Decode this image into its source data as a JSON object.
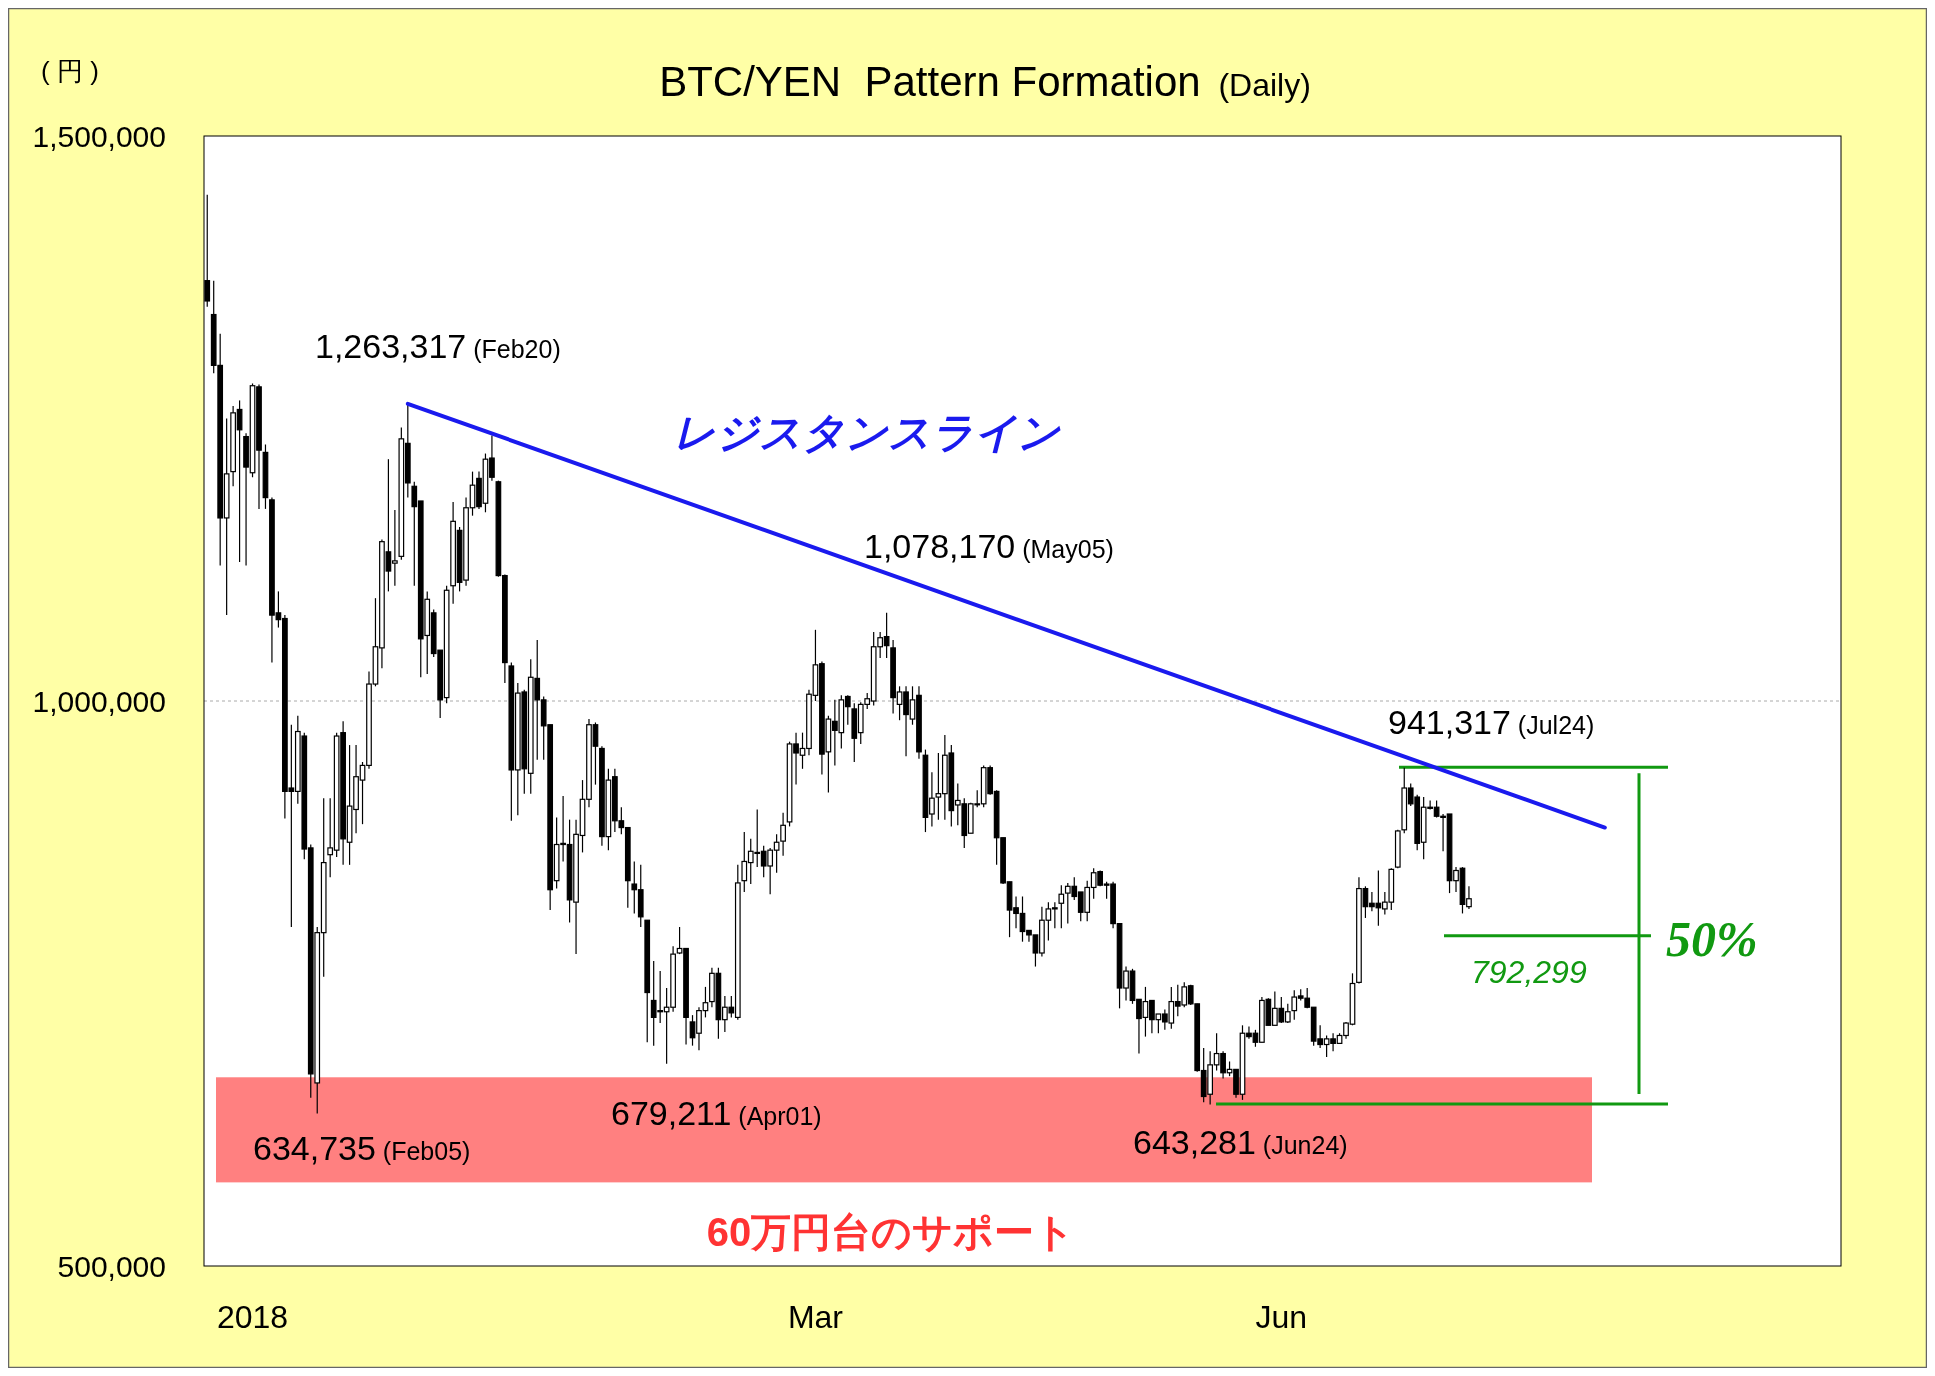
{
  "chart_data": {
    "type": "candlestick",
    "title": "BTC/YEN  Pattern Formation  (Daily)",
    "ylabel": "( 円 )",
    "categories": [
      null,
      null,
      null,
      null,
      null,
      null,
      null,
      "2018",
      null,
      null,
      null,
      null,
      null,
      null,
      null,
      null,
      null,
      null,
      null,
      null,
      null,
      null,
      null,
      null,
      null,
      null,
      null,
      null,
      null,
      null,
      null,
      null,
      null,
      null,
      null,
      null,
      null,
      null,
      null,
      null,
      null,
      null,
      null,
      null,
      null,
      null,
      null,
      null,
      null,
      null,
      null,
      null,
      null,
      null,
      null,
      null,
      null,
      null,
      null,
      null,
      null,
      null,
      null,
      null,
      null,
      null,
      null,
      null,
      null,
      null,
      null,
      null,
      null,
      null,
      null,
      null,
      null,
      null,
      null,
      null,
      null,
      null,
      null,
      null,
      null,
      null,
      null,
      null,
      null,
      null,
      null,
      null,
      null,
      null,
      "Mar",
      null,
      null,
      null,
      null,
      null,
      null,
      null,
      null,
      null,
      null,
      null,
      null,
      null,
      null,
      null,
      null,
      null,
      null,
      null,
      null,
      null,
      null,
      null,
      null,
      null,
      null,
      null,
      null,
      null,
      null,
      null,
      null,
      null,
      null,
      null,
      null,
      null,
      null,
      null,
      null,
      null,
      null,
      null,
      null,
      null,
      null,
      null,
      null,
      null,
      null,
      null,
      null,
      null,
      null,
      null,
      null,
      null,
      null,
      null,
      null,
      null,
      null,
      null,
      null,
      null,
      null,
      null,
      null,
      null,
      null,
      null,
      "Jun",
      null,
      null,
      null,
      null,
      null,
      null,
      null,
      null,
      null,
      null,
      null,
      null,
      null,
      null,
      null,
      null,
      null,
      null,
      null,
      null,
      null,
      null,
      null,
      null,
      null,
      null,
      null,
      null,
      null,
      null,
      null,
      null,
      null,
      null,
      null,
      null,
      null,
      null,
      null,
      null,
      null,
      null,
      null,
      null,
      null,
      null,
      null,
      null,
      null,
      null,
      null,
      null,
      null,
      null,
      null,
      null,
      null,
      null,
      null,
      null,
      null,
      null,
      null,
      null,
      null,
      null,
      null,
      null,
      null,
      null,
      null,
      null,
      null,
      null,
      null,
      null,
      null,
      null,
      null,
      null,
      null,
      null,
      null,
      null,
      null,
      null
    ],
    "ohlc": [
      [
        1372000,
        1448000,
        1349000,
        1354000
      ],
      [
        1342000,
        1372000,
        1290000,
        1297000
      ],
      [
        1297000,
        1325000,
        1120000,
        1162000
      ],
      [
        1162000,
        1250000,
        1076000,
        1201000
      ],
      [
        1203000,
        1261000,
        1190000,
        1255000
      ],
      [
        1258000,
        1266000,
        1123000,
        1240000
      ],
      [
        1234000,
        1237000,
        1120000,
        1207000
      ],
      [
        1202000,
        1281000,
        1198000,
        1279000
      ],
      [
        1278000,
        1280000,
        1170000,
        1222000
      ],
      [
        1220000,
        1227000,
        1170000,
        1180000
      ],
      [
        1178000,
        1180000,
        1034000,
        1076000
      ],
      [
        1078000,
        1097000,
        1065000,
        1072000
      ],
      [
        1073000,
        1076000,
        896000,
        920000
      ],
      [
        923000,
        979000,
        800000,
        920000
      ],
      [
        920000,
        987000,
        909000,
        973000
      ],
      [
        969000,
        972000,
        860000,
        869000
      ],
      [
        870000,
        873000,
        649000,
        670000
      ],
      [
        662000,
        800000,
        635000,
        795000
      ],
      [
        795000,
        914000,
        756000,
        857000
      ],
      [
        864000,
        914000,
        844000,
        870000
      ],
      [
        868000,
        972000,
        862000,
        969000
      ],
      [
        972000,
        982000,
        855000,
        878000
      ],
      [
        875000,
        961000,
        855000,
        907000
      ],
      [
        904000,
        961000,
        883000,
        933000
      ],
      [
        930000,
        946000,
        891000,
        943000
      ],
      [
        943000,
        1026000,
        940000,
        1015000
      ],
      [
        1015000,
        1091000,
        1013000,
        1048000
      ],
      [
        1047000,
        1143000,
        1029000,
        1141000
      ],
      [
        1132000,
        1214000,
        1097000,
        1115000
      ],
      [
        1122000,
        1169000,
        1102000,
        1124000
      ],
      [
        1128000,
        1242000,
        1125000,
        1232000
      ],
      [
        1228000,
        1263000,
        1180000,
        1193000
      ],
      [
        1190000,
        1194000,
        1102000,
        1172000
      ],
      [
        1177000,
        1177000,
        1021000,
        1055000
      ],
      [
        1058000,
        1097000,
        1024000,
        1090000
      ],
      [
        1078000,
        1081000,
        1039000,
        1042000
      ],
      [
        1045000,
        1045000,
        985000,
        1001000
      ],
      [
        1003000,
        1102000,
        998000,
        1098000
      ],
      [
        1102000,
        1176000,
        1086000,
        1159000
      ],
      [
        1151000,
        1154000,
        1097000,
        1105000
      ],
      [
        1107000,
        1180000,
        1102000,
        1171000
      ],
      [
        1171000,
        1203000,
        1164000,
        1191000
      ],
      [
        1197000,
        1203000,
        1170000,
        1172000
      ],
      [
        1175000,
        1219000,
        1167000,
        1214000
      ],
      [
        1215000,
        1235000,
        1195000,
        1198000
      ],
      [
        1194000,
        1195000,
        1110000,
        1111000
      ],
      [
        1111000,
        1112000,
        1016000,
        1034000
      ],
      [
        1031000,
        1034000,
        894000,
        939000
      ],
      [
        939000,
        1016000,
        899000,
        1007000
      ],
      [
        1008000,
        1010000,
        918000,
        940000
      ],
      [
        936000,
        1037000,
        918000,
        1021000
      ],
      [
        1020000,
        1054000,
        948000,
        1001000
      ],
      [
        1001000,
        1004000,
        948000,
        978000
      ],
      [
        979000,
        979000,
        815000,
        833000
      ],
      [
        841000,
        897000,
        834000,
        873000
      ],
      [
        873000,
        916000,
        858000,
        874000
      ],
      [
        873000,
        895000,
        804000,
        824000
      ],
      [
        822000,
        895000,
        776000,
        882000
      ],
      [
        881000,
        930000,
        866000,
        913000
      ],
      [
        913000,
        984000,
        906000,
        979000
      ],
      [
        979000,
        981000,
        926000,
        960000
      ],
      [
        958000,
        960000,
        872000,
        880000
      ],
      [
        880000,
        940000,
        868000,
        930000
      ],
      [
        933000,
        940000,
        884000,
        894000
      ],
      [
        894000,
        906000,
        882000,
        888000
      ],
      [
        888000,
        888000,
        817000,
        841000
      ],
      [
        838000,
        858000,
        812000,
        833000
      ],
      [
        833000,
        855000,
        800000,
        809000
      ],
      [
        806000,
        806000,
        698000,
        742000
      ],
      [
        735000,
        770000,
        695000,
        720000
      ],
      [
        726000,
        761000,
        715000,
        725000
      ],
      [
        725000,
        746000,
        679000,
        729000
      ],
      [
        729000,
        783000,
        725000,
        776000
      ],
      [
        777000,
        800000,
        776000,
        781000
      ],
      [
        781000,
        781000,
        696000,
        720000
      ],
      [
        716000,
        722000,
        695000,
        702000
      ],
      [
        706000,
        729000,
        691000,
        726000
      ],
      [
        726000,
        747000,
        720000,
        733000
      ],
      [
        734000,
        764000,
        729000,
        759000
      ],
      [
        759000,
        764000,
        701000,
        718000
      ],
      [
        718000,
        739000,
        707000,
        729000
      ],
      [
        729000,
        739000,
        720000,
        724000
      ],
      [
        720000,
        855000,
        718000,
        839000
      ],
      [
        841000,
        884000,
        831000,
        858000
      ],
      [
        857000,
        878000,
        838000,
        867000
      ],
      [
        866000,
        904000,
        853000,
        866000
      ],
      [
        867000,
        872000,
        844000,
        854000
      ],
      [
        854000,
        870000,
        829000,
        868000
      ],
      [
        868000,
        882000,
        848000,
        875000
      ],
      [
        876000,
        901000,
        863000,
        890000
      ],
      [
        893000,
        964000,
        889000,
        962000
      ],
      [
        962000,
        972000,
        926000,
        954000
      ],
      [
        952000,
        972000,
        940000,
        958000
      ],
      [
        958000,
        1010000,
        952000,
        1006000
      ],
      [
        1005000,
        1063000,
        1000000,
        1032000
      ],
      [
        1033000,
        1035000,
        935000,
        953000
      ],
      [
        955000,
        987000,
        919000,
        984000
      ],
      [
        982000,
        1001000,
        943000,
        974000
      ],
      [
        972000,
        1005000,
        958000,
        1001000
      ],
      [
        1004000,
        1005000,
        979000,
        995000
      ],
      [
        993000,
        998000,
        946000,
        967000
      ],
      [
        972000,
        999000,
        962000,
        997000
      ],
      [
        997000,
        1007000,
        993000,
        1002000
      ],
      [
        1000000,
        1061000,
        996000,
        1048000
      ],
      [
        1048000,
        1061000,
        1038000,
        1056000
      ],
      [
        1057000,
        1078000,
        1038000,
        1049000
      ],
      [
        1047000,
        1054000,
        989000,
        1003000
      ],
      [
        997000,
        1013000,
        983000,
        1008000
      ],
      [
        1008000,
        1013000,
        951000,
        988000
      ],
      [
        984000,
        1013000,
        979000,
        1001000
      ],
      [
        1005000,
        1013000,
        949000,
        955000
      ],
      [
        952000,
        957000,
        884000,
        897000
      ],
      [
        900000,
        937000,
        889000,
        914000
      ],
      [
        915000,
        954000,
        895000,
        918000
      ],
      [
        918000,
        970000,
        895000,
        952000
      ],
      [
        954000,
        961000,
        889000,
        903000
      ],
      [
        908000,
        927000,
        890000,
        912000
      ],
      [
        909000,
        914000,
        870000,
        881000
      ],
      [
        883000,
        910000,
        883000,
        909000
      ],
      [
        909000,
        921000,
        906000,
        909000
      ],
      [
        909000,
        943000,
        906000,
        941000
      ],
      [
        941000,
        943000,
        917000,
        918000
      ],
      [
        920000,
        921000,
        855000,
        879000
      ],
      [
        879000,
        879000,
        838000,
        839000
      ],
      [
        840000,
        840000,
        791000,
        815000
      ],
      [
        817000,
        827000,
        799000,
        812000
      ],
      [
        812000,
        827000,
        787000,
        796000
      ],
      [
        797000,
        797000,
        787000,
        793000
      ],
      [
        793000,
        793000,
        765000,
        777000
      ],
      [
        777000,
        818000,
        774000,
        806000
      ],
      [
        806000,
        822000,
        788000,
        816000
      ],
      [
        816000,
        822000,
        799000,
        817000
      ],
      [
        821000,
        837000,
        799000,
        829000
      ],
      [
        830000,
        839000,
        803000,
        836000
      ],
      [
        836000,
        844000,
        824000,
        827000
      ],
      [
        831000,
        831000,
        805000,
        813000
      ],
      [
        813000,
        841000,
        805000,
        835000
      ],
      [
        835000,
        852000,
        825000,
        848000
      ],
      [
        849000,
        850000,
        836000,
        837000
      ],
      [
        838000,
        840000,
        825000,
        837000
      ],
      [
        838000,
        840000,
        799000,
        803000
      ],
      [
        803000,
        803000,
        728000,
        746000
      ],
      [
        746000,
        765000,
        735000,
        761000
      ],
      [
        761000,
        763000,
        732000,
        735000
      ],
      [
        736000,
        736000,
        688000,
        719000
      ],
      [
        720000,
        747000,
        703000,
        734000
      ],
      [
        735000,
        735000,
        706000,
        718000
      ],
      [
        718000,
        723000,
        706000,
        723000
      ],
      [
        723000,
        727000,
        709000,
        716000
      ],
      [
        715000,
        747000,
        710000,
        734000
      ],
      [
        734000,
        749000,
        721000,
        730000
      ],
      [
        731000,
        751000,
        729000,
        747000
      ],
      [
        748000,
        749000,
        731000,
        732000
      ],
      [
        732000,
        732000,
        672000,
        673000
      ],
      [
        673000,
        693000,
        645000,
        650000
      ],
      [
        652000,
        690000,
        643000,
        678000
      ],
      [
        678000,
        706000,
        673000,
        688000
      ],
      [
        688000,
        690000,
        666000,
        671000
      ],
      [
        671000,
        681000,
        668000,
        674000
      ],
      [
        674000,
        674000,
        649000,
        652000
      ],
      [
        652000,
        713000,
        647000,
        706000
      ],
      [
        706000,
        712000,
        701000,
        703000
      ],
      [
        706000,
        709000,
        694000,
        698000
      ],
      [
        698000,
        738000,
        698000,
        735000
      ],
      [
        736000,
        737000,
        713000,
        713000
      ],
      [
        713000,
        743000,
        713000,
        728000
      ],
      [
        728000,
        738000,
        715000,
        716000
      ],
      [
        716000,
        732000,
        715000,
        725000
      ],
      [
        726000,
        744000,
        718000,
        738000
      ],
      [
        739000,
        745000,
        735000,
        737000
      ],
      [
        737000,
        746000,
        728000,
        729000
      ],
      [
        729000,
        729000,
        695000,
        699000
      ],
      [
        701000,
        713000,
        693000,
        696000
      ],
      [
        696000,
        704000,
        685000,
        701000
      ],
      [
        701000,
        706000,
        690000,
        697000
      ],
      [
        697000,
        706000,
        697000,
        704000
      ],
      [
        704000,
        716000,
        701000,
        715000
      ],
      [
        714000,
        759000,
        713000,
        750000
      ],
      [
        751000,
        844000,
        750000,
        834000
      ],
      [
        834000,
        836000,
        808000,
        818000
      ],
      [
        821000,
        831000,
        814000,
        818000
      ],
      [
        821000,
        850000,
        801000,
        817000
      ],
      [
        816000,
        831000,
        811000,
        822000
      ],
      [
        822000,
        852000,
        815000,
        851000
      ],
      [
        853000,
        886000,
        852000,
        885000
      ],
      [
        886000,
        941000,
        883000,
        923000
      ],
      [
        923000,
        927000,
        907000,
        909000
      ],
      [
        915000,
        917000,
        868000,
        874000
      ],
      [
        875000,
        915000,
        860000,
        906000
      ],
      [
        906000,
        912000,
        904000,
        905000
      ],
      [
        906000,
        912000,
        897000,
        898000
      ],
      [
        898000,
        900000,
        867000,
        897000
      ],
      [
        900000,
        900000,
        830000,
        841000
      ],
      [
        841000,
        853000,
        831000,
        850000
      ],
      [
        852000,
        853000,
        812000,
        820000
      ],
      [
        818000,
        836000,
        816000,
        825000
      ],
      null,
      null,
      null,
      null,
      null,
      null,
      null,
      null,
      null,
      null,
      null,
      null,
      null,
      null,
      null,
      null,
      null,
      null,
      null,
      null,
      null,
      null,
      null,
      null,
      null,
      null,
      null,
      null,
      null,
      null,
      null,
      null,
      null,
      null,
      null,
      null,
      null,
      null,
      null,
      null,
      null,
      null,
      null,
      null,
      null,
      null,
      null,
      null,
      null,
      null,
      null,
      null,
      null,
      null,
      null,
      null,
      null
    ],
    "color": "#000000",
    "series": [
      {
        "type": "line",
        "name": "レジスタンスライン",
        "color": "#1a1aee",
        "values": [
          null,
          null,
          null,
          null,
          null,
          null,
          null,
          null,
          null,
          null,
          null,
          null,
          null,
          null,
          null,
          null,
          null,
          null,
          null,
          null,
          null,
          null,
          null,
          null,
          null,
          null,
          null,
          null,
          null,
          null,
          null,
          1263000,
          null,
          null,
          null,
          null,
          null,
          null,
          null,
          null,
          null,
          null,
          null,
          null,
          null,
          null,
          null,
          null,
          null,
          null,
          null,
          null,
          null,
          null,
          null,
          null,
          null,
          null,
          null,
          null,
          null,
          null,
          null,
          null,
          null,
          null,
          null,
          null,
          null,
          null,
          null,
          null,
          null,
          null,
          null,
          null,
          null,
          null,
          null,
          null,
          null,
          null,
          null,
          null,
          null,
          null,
          null,
          null,
          null,
          null,
          null,
          null,
          null,
          null,
          null,
          null,
          null,
          null,
          null,
          null,
          null,
          null,
          null,
          null,
          null,
          null,
          null,
          null,
          null,
          null,
          null,
          null,
          null,
          null,
          null,
          null,
          null,
          null,
          null,
          null,
          null,
          null,
          null,
          null,
          null,
          null,
          null,
          null,
          null,
          null,
          null,
          null,
          null,
          null,
          null,
          null,
          null,
          null,
          null,
          null,
          null,
          null,
          null,
          null,
          null,
          null,
          null,
          null,
          null,
          null,
          null,
          null,
          null,
          null,
          null,
          null,
          null,
          null,
          null,
          null,
          null,
          null,
          null,
          null,
          null,
          null,
          null,
          null,
          null,
          null,
          null,
          null,
          null,
          null,
          null,
          null,
          null,
          null,
          null,
          null,
          null,
          null,
          null,
          null,
          null,
          null,
          null,
          null,
          null,
          null,
          null,
          null,
          null,
          null,
          null,
          null,
          null,
          null,
          null,
          null,
          null,
          null,
          null,
          null,
          null,
          null,
          null,
          null,
          null,
          null,
          null,
          null,
          null,
          null,
          null,
          null,
          888000,
          null,
          null,
          null,
          null,
          null,
          null,
          null,
          null,
          null,
          null,
          null,
          null,
          null,
          null,
          null,
          null,
          null,
          null,
          null,
          null,
          null,
          null,
          null,
          null,
          null,
          null,
          null,
          null,
          null,
          null,
          null,
          null,
          null,
          null,
          null,
          null
        ]
      }
    ],
    "ylim": [
      500000,
      1500000
    ],
    "yticks": [
      {
        "value": 500000,
        "label": "500,000"
      },
      {
        "value": 1000000,
        "label": "1,000,000"
      },
      {
        "value": 1500000,
        "label": "1,500,000"
      }
    ],
    "grid": "y",
    "bands": [
      {
        "axis": "y",
        "from": 574000,
        "to": 667000,
        "label": "60万円台のサポート",
        "color": "#ff8080"
      }
    ],
    "ref_lines": [
      {
        "axis": "y",
        "value": 941317,
        "color": "#119911"
      },
      {
        "axis": "y",
        "value": 643281,
        "color": "#119911"
      },
      {
        "axis": "y",
        "value": 792299,
        "label": "792,299",
        "color": "#119911"
      }
    ],
    "annotations": [
      "1,263,317 (Feb20)",
      "1,078,170 (May05)",
      "941,317 (Jul24)",
      "634,735 (Feb05)",
      "679,211 (Apr01)",
      "643,281 (Jun24)",
      "50%"
    ]
  }
}
